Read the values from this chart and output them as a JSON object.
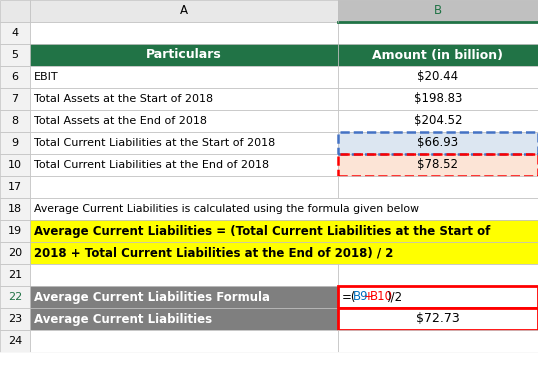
{
  "col_header_bg": "#217346",
  "col_header_text": "#FFFFFF",
  "highlight_b9_bg": "#dce6f1",
  "highlight_b10_bg": "#fce4d6",
  "data_rows": [
    [
      "EBIT",
      "$20.44"
    ],
    [
      "Total Assets at the Start of 2018",
      "$198.83"
    ],
    [
      "Total Assets at the End of 2018",
      "$204.52"
    ],
    [
      "Total Current Liabilities at the Start of 2018",
      "$66.93"
    ],
    [
      "Total Current Liabilities at the End of 2018",
      "$78.52"
    ]
  ],
  "formula_text": "Average Current Liabilities is calculated using the formula given below",
  "yellow_text_line1": "Average Current Liabilities = (Total Current Liabilities at the Start of",
  "yellow_text_line2": "2018 + Total Current Liabilities at the End of 2018) / 2",
  "yellow_bg": "#FFFF00",
  "summary_rows": [
    [
      "Average Current Liabilities Formula",
      "=(B9+B10)/2"
    ],
    [
      "Average Current Liabilities",
      "$72.73"
    ]
  ],
  "summary_bg": "#7F7F7F",
  "summary_text_color": "#FFFFFF",
  "formula_b9_color": "#0070C0",
  "formula_plus_color": "#FF0000",
  "formula_b10_color": "#FF0000",
  "col_b_header_bg": "#C0C0C0",
  "col_b_header_text": "#217346",
  "header_bg": "#E8E8E8",
  "grid_color": "#BFBFBF",
  "row_num_bg": "#F2F2F2",
  "row_num_color": "#000000",
  "white_bg": "#FFFFFF",
  "normal_text_color": "#000000",
  "blue_border_color": "#4472C4",
  "red_border_color": "#FF0000",
  "fig_width": 5.38,
  "fig_height": 3.75,
  "dpi": 100
}
